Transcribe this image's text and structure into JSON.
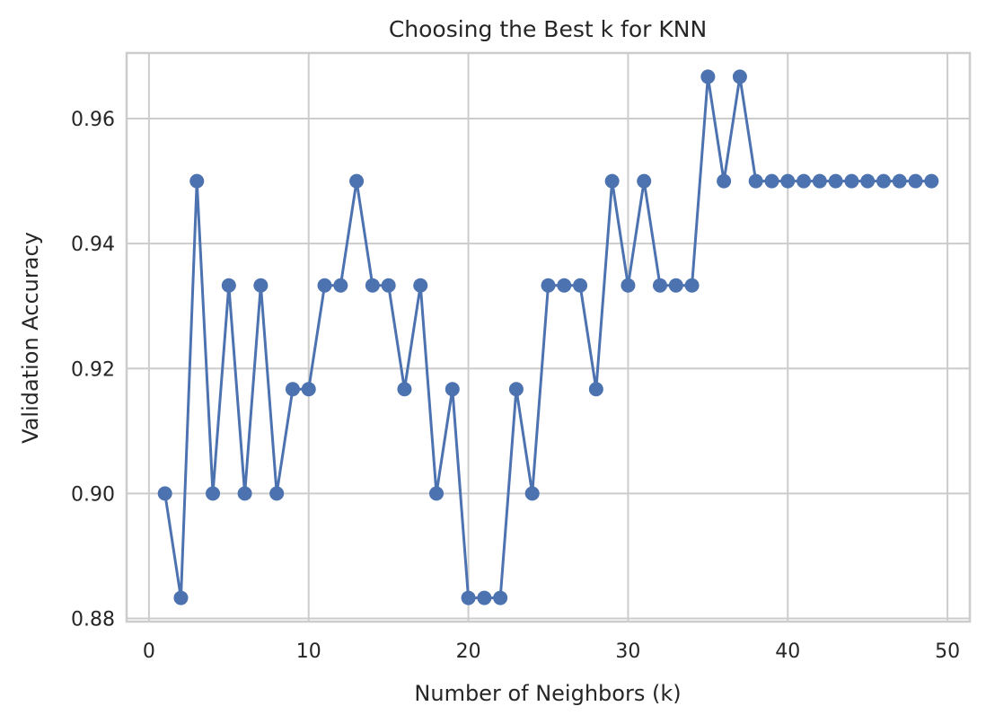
{
  "chart_data": {
    "type": "line",
    "title": "Choosing the Best k for KNN",
    "xlabel": "Number of Neighbors (k)",
    "ylabel": "Validation Accuracy",
    "xlim": [
      -1.4,
      51.4
    ],
    "ylim": [
      0.8795,
      0.9705
    ],
    "xticks": [
      0,
      10,
      20,
      30,
      40,
      50
    ],
    "xtick_labels": [
      "0",
      "10",
      "20",
      "30",
      "40",
      "50"
    ],
    "yticks": [
      0.88,
      0.9,
      0.92,
      0.94,
      0.96
    ],
    "ytick_labels": [
      "0.88",
      "0.90",
      "0.92",
      "0.94",
      "0.96"
    ],
    "grid": true,
    "marker": "circle",
    "color": "#4c72b0",
    "series": [
      {
        "x": [
          1,
          2,
          3,
          4,
          5,
          6,
          7,
          8,
          9,
          10,
          11,
          12,
          13,
          14,
          15,
          16,
          17,
          18,
          19,
          20,
          21,
          22,
          23,
          24,
          25,
          26,
          27,
          28,
          29,
          30,
          31,
          32,
          33,
          34,
          35,
          36,
          37,
          38,
          39,
          40,
          41,
          42,
          43,
          44,
          45,
          46,
          47,
          48,
          49
        ],
        "y": [
          0.9,
          0.8833,
          0.95,
          0.9,
          0.9333,
          0.9,
          0.9333,
          0.9,
          0.9167,
          0.9167,
          0.9333,
          0.9333,
          0.95,
          0.9333,
          0.9333,
          0.9167,
          0.9333,
          0.9,
          0.9167,
          0.8833,
          0.8833,
          0.8833,
          0.9167,
          0.9,
          0.9333,
          0.9333,
          0.9333,
          0.9167,
          0.95,
          0.9333,
          0.95,
          0.9333,
          0.9333,
          0.9333,
          0.9667,
          0.95,
          0.9667,
          0.95,
          0.95,
          0.95,
          0.95,
          0.95,
          0.95,
          0.95,
          0.95,
          0.95,
          0.95,
          0.95,
          0.95
        ]
      }
    ]
  }
}
